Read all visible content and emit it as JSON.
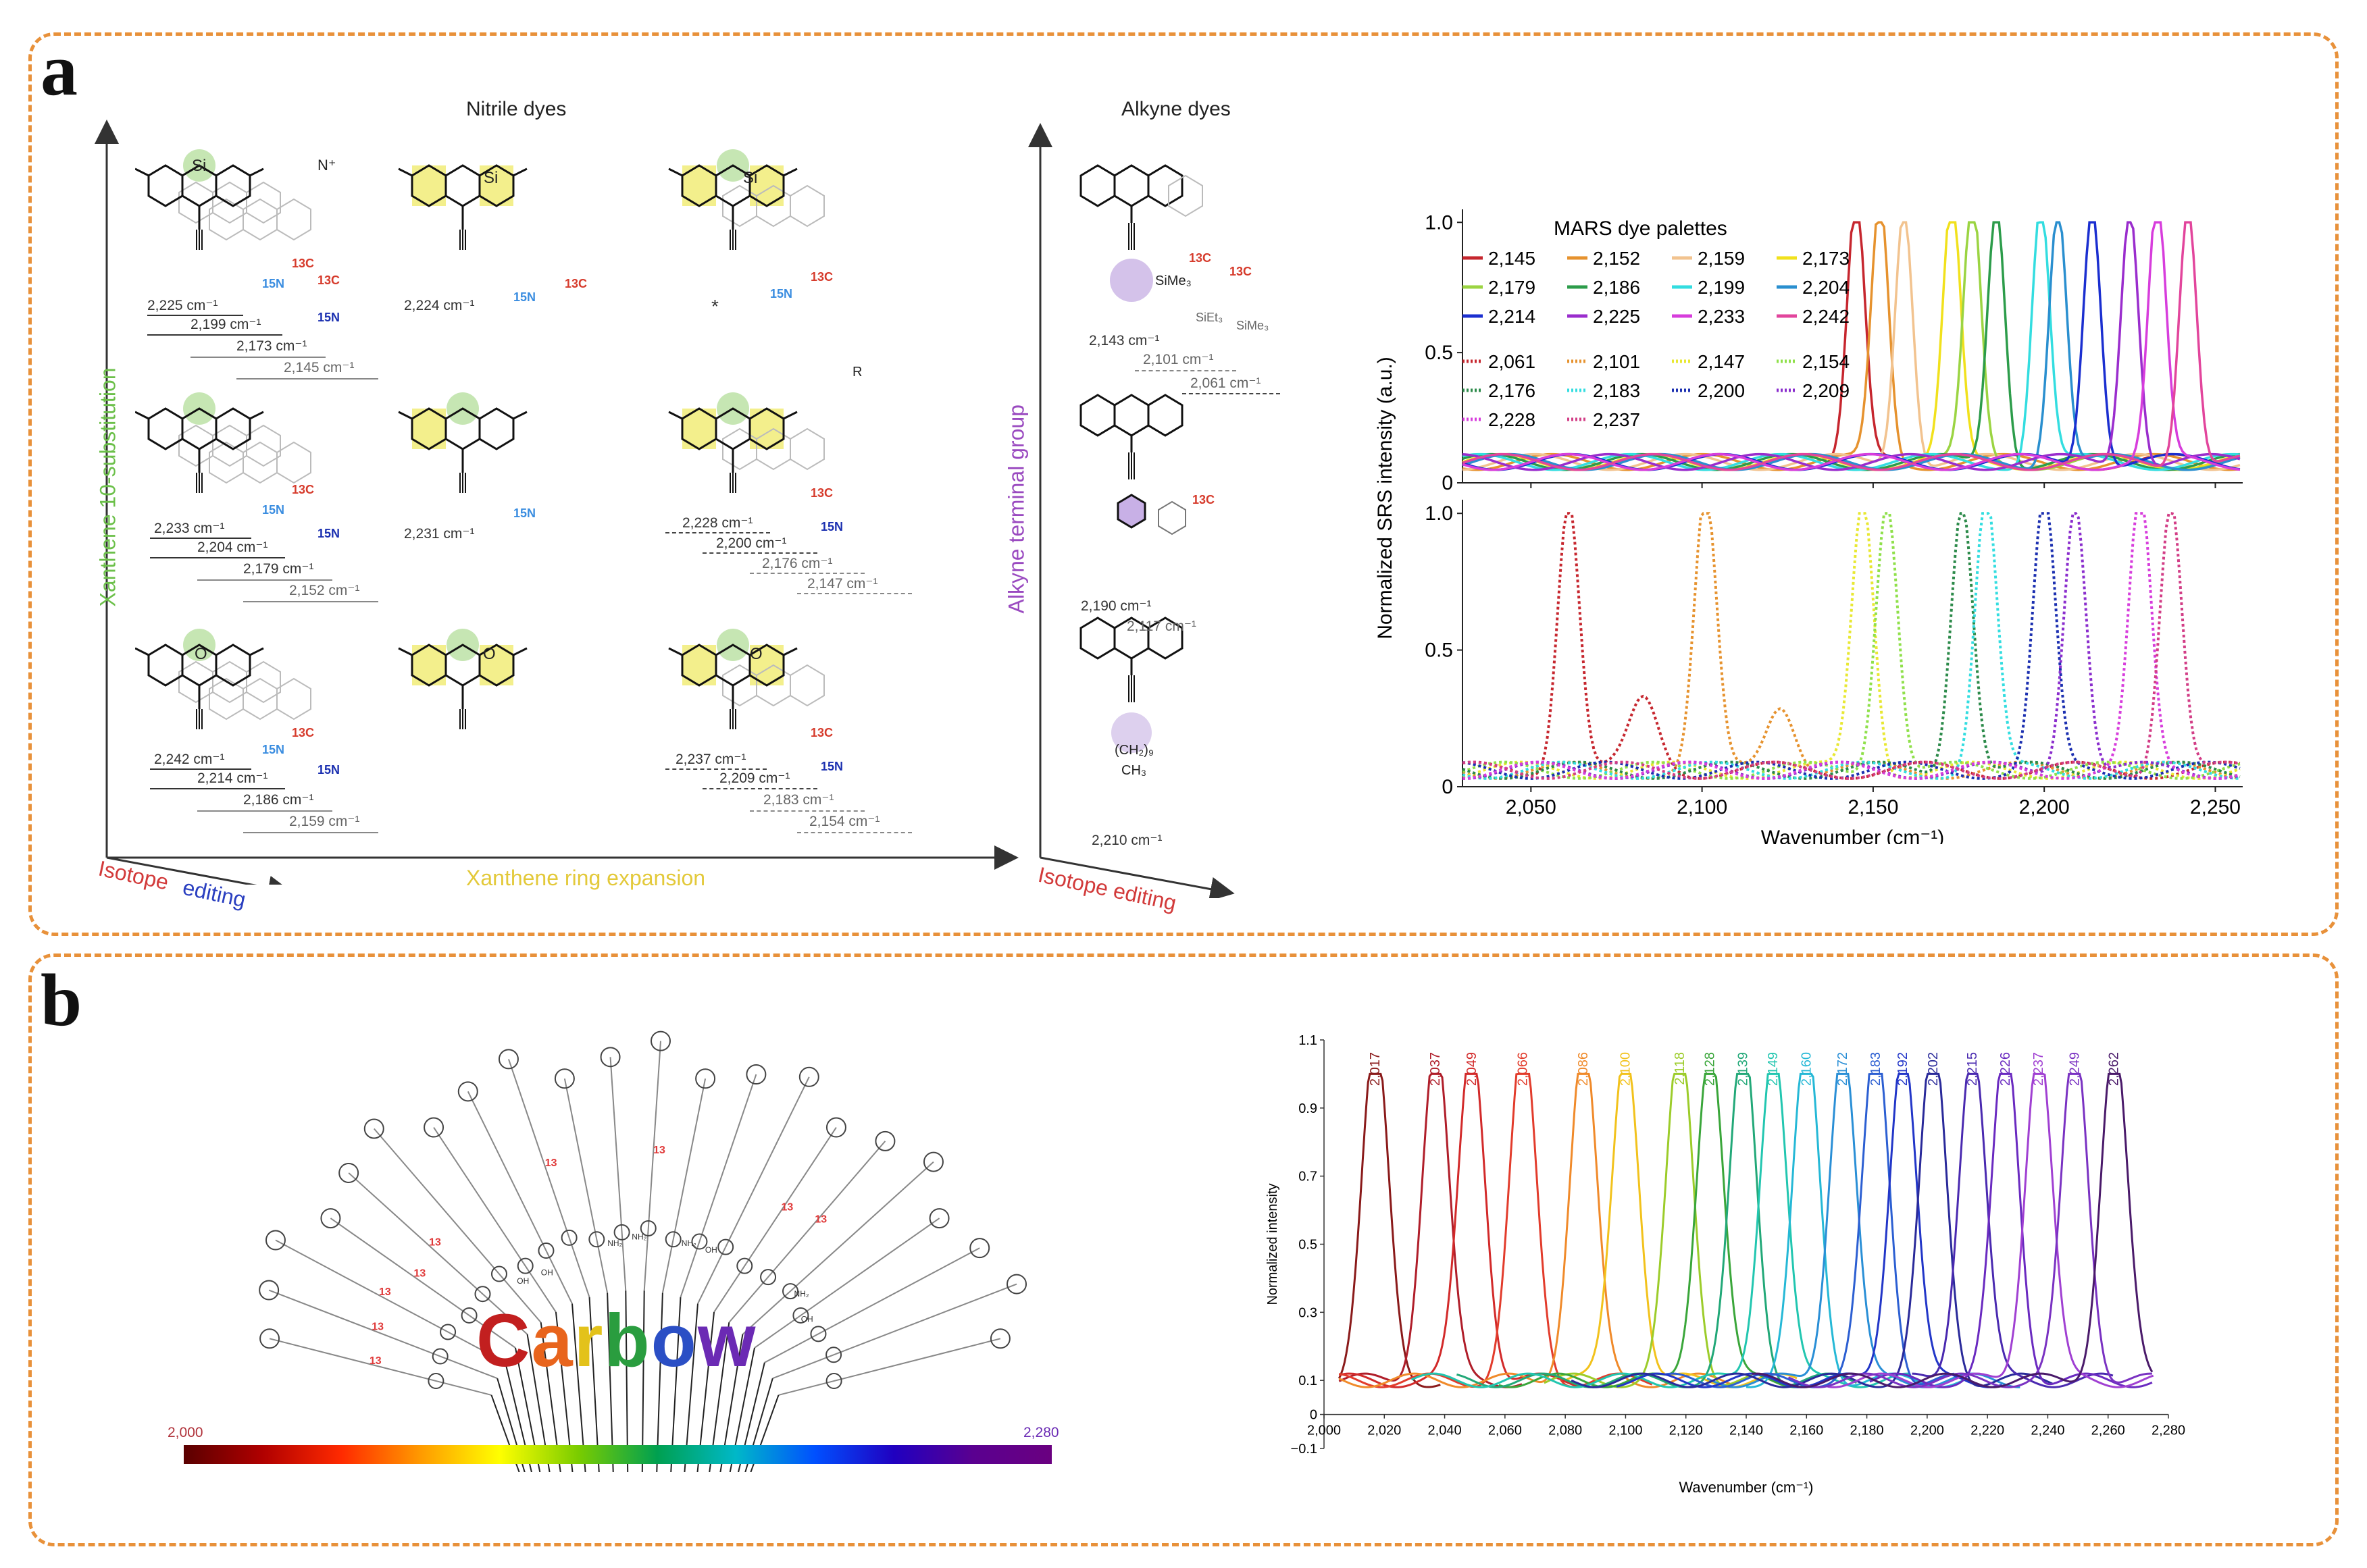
{
  "panel_a": {
    "label": "a",
    "nitrile_title": "Nitrile dyes",
    "alkyne_title": "Alkyne dyes",
    "axis_y_nitrile": "Xanthene 10-substitution",
    "axis_x_nitrile": "Xanthene ring expansion",
    "axis_iso_nitrile_1": "Isotope",
    "axis_iso_nitrile_2": "editing",
    "axis_y_alkyne": "Alkyne terminal group",
    "axis_iso_alkyne": "Isotope editing",
    "asterisk": "*",
    "nitrile_rows": [
      {
        "col1": [
          "2,225 cm⁻¹",
          "2,199 cm⁻¹",
          "2,173 cm⁻¹",
          "2,145 cm⁻¹"
        ],
        "col2": "2,224 cm⁻¹",
        "col3": []
      },
      {
        "col1": [
          "2,233 cm⁻¹",
          "2,204 cm⁻¹",
          "2,179 cm⁻¹",
          "2,152 cm⁻¹"
        ],
        "col2": "2,231 cm⁻¹",
        "col3": [
          "2,228 cm⁻¹",
          "2,200 cm⁻¹",
          "2,176 cm⁻¹",
          "2,147 cm⁻¹"
        ]
      },
      {
        "col1": [
          "2,242 cm⁻¹",
          "2,214 cm⁻¹",
          "2,186 cm⁻¹",
          "2,159 cm⁻¹"
        ],
        "col2": "",
        "col3": [
          "2,237 cm⁻¹",
          "2,209 cm⁻¹",
          "2,183 cm⁻¹",
          "2,154 cm⁻¹"
        ]
      }
    ],
    "alkyne_rows": [
      {
        "main": "2,143 cm⁻¹",
        "iso": [
          "2,101 cm⁻¹",
          "2,061 cm⁻¹"
        ],
        "group": "SiMe₃",
        "ghost1": "SiEt₃",
        "ghost2": "SiMe₃"
      },
      {
        "main": "2,190 cm⁻¹",
        "iso": [
          "2,117 cm⁻¹"
        ]
      },
      {
        "main": "2,210 cm⁻¹",
        "iso": [],
        "group1": "(CH₂)₉",
        "group2": "CH₃"
      }
    ],
    "atoms": {
      "si": "Si",
      "n": "N",
      "o": "O",
      "c13": "13C",
      "n15": "15N",
      "nplus": "N⁺",
      "r": "R"
    }
  },
  "mars_chart_data": {
    "type": "line",
    "title": "MARS dye palettes",
    "ylabel": "Normalized SRS intensity (a.u.)",
    "xlabel": "Wavenumber (cm⁻¹)",
    "xlim": [
      2030,
      2258
    ],
    "ylim": [
      0,
      1.05
    ],
    "xticks": [
      "2,050",
      "2,100",
      "2,150",
      "2,200",
      "2,250"
    ],
    "xtick_vals": [
      2050,
      2100,
      2150,
      2200,
      2250
    ],
    "yticks": [
      "0",
      "0.5",
      "1.0"
    ],
    "ytick_vals": [
      0,
      0.5,
      1.0
    ],
    "top_series": [
      {
        "name": "2,145",
        "color": "#c6262e"
      },
      {
        "name": "2,152",
        "color": "#e6922e"
      },
      {
        "name": "2,159",
        "color": "#f2c38f"
      },
      {
        "name": "2,173",
        "color": "#f1e11c"
      },
      {
        "name": "2,179",
        "color": "#9bd442"
      },
      {
        "name": "2,186",
        "color": "#2c9c4a"
      },
      {
        "name": "2,199",
        "color": "#33dde0"
      },
      {
        "name": "2,204",
        "color": "#2a8fcf"
      },
      {
        "name": "2,214",
        "color": "#1b2fd0"
      },
      {
        "name": "2,225",
        "color": "#9a2dcd"
      },
      {
        "name": "2,233",
        "color": "#d73ddc"
      },
      {
        "name": "2,242",
        "color": "#e2459c"
      }
    ],
    "bottom_series": [
      {
        "name": "2,061",
        "color": "#c6262e"
      },
      {
        "name": "2,101",
        "color": "#e6922e"
      },
      {
        "name": "2,147",
        "color": "#e8e832"
      },
      {
        "name": "2,154",
        "color": "#8fe04a"
      },
      {
        "name": "2,176",
        "color": "#2c8a4a"
      },
      {
        "name": "2,183",
        "color": "#33dde0"
      },
      {
        "name": "2,200",
        "color": "#1b2fb0"
      },
      {
        "name": "2,209",
        "color": "#8a2dcd"
      },
      {
        "name": "2,228",
        "color": "#d73ddc"
      },
      {
        "name": "2,237",
        "color": "#d23d86"
      }
    ]
  },
  "panel_b": {
    "label": "b",
    "carbow_letters": [
      "C",
      "a",
      "r",
      "b",
      "o",
      "w"
    ],
    "carbow_colors": [
      "#c21f1f",
      "#e8641c",
      "#e3c21a",
      "#2a9d3f",
      "#2b4fc5",
      "#6b2ab4"
    ],
    "bar_min": "2,000",
    "bar_max": "2,280",
    "iso13": "13",
    "nh2": "NH₂",
    "oh": "OH"
  },
  "carbow_chart_data": {
    "type": "line",
    "ylabel": "Normalized intensity",
    "xlabel": "Wavenumber (cm⁻¹)",
    "xlim": [
      2000,
      2280
    ],
    "ylim": [
      -0.1,
      1.1
    ],
    "xticks": [
      "2,000",
      "2,020",
      "2,040",
      "2,060",
      "2,080",
      "2,100",
      "2,120",
      "2,140",
      "2,160",
      "2,180",
      "2,200",
      "2,220",
      "2,240",
      "2,260",
      "2,280"
    ],
    "xtick_vals": [
      2000,
      2020,
      2040,
      2060,
      2080,
      2100,
      2120,
      2140,
      2160,
      2180,
      2200,
      2220,
      2240,
      2260,
      2280
    ],
    "yticks": [
      "−0.1",
      "0",
      "0.1",
      "0.3",
      "0.5",
      "0.7",
      "0.9",
      "1.1"
    ],
    "ytick_vals": [
      -0.1,
      0,
      0.1,
      0.3,
      0.5,
      0.7,
      0.9,
      1.1
    ],
    "peaks": [
      {
        "label": "2,017",
        "x": 2017,
        "color": "#8a1a1a"
      },
      {
        "label": "2,037",
        "x": 2037,
        "color": "#b01e2a"
      },
      {
        "label": "2,049",
        "x": 2049,
        "color": "#d22a2a"
      },
      {
        "label": "2,066",
        "x": 2066,
        "color": "#e23c2c"
      },
      {
        "label": "2,086",
        "x": 2086,
        "color": "#f08a2a"
      },
      {
        "label": "2,100",
        "x": 2100,
        "color": "#f2c21c"
      },
      {
        "label": "2,118",
        "x": 2118,
        "color": "#9ccc2a"
      },
      {
        "label": "2,128",
        "x": 2128,
        "color": "#3aa63a"
      },
      {
        "label": "2,139",
        "x": 2139,
        "color": "#22a878"
      },
      {
        "label": "2,149",
        "x": 2149,
        "color": "#22c6b0"
      },
      {
        "label": "2,160",
        "x": 2160,
        "color": "#25b8d6"
      },
      {
        "label": "2,172",
        "x": 2172,
        "color": "#2a8fd6"
      },
      {
        "label": "2,183",
        "x": 2183,
        "color": "#2c5fd2"
      },
      {
        "label": "2,192",
        "x": 2192,
        "color": "#2236c8"
      },
      {
        "label": "2,202",
        "x": 2202,
        "color": "#2a2a9a"
      },
      {
        "label": "2,215",
        "x": 2215,
        "color": "#4a2ab0"
      },
      {
        "label": "2,226",
        "x": 2226,
        "color": "#6a2ac0"
      },
      {
        "label": "2,237",
        "x": 2237,
        "color": "#a040d2"
      },
      {
        "label": "2,249",
        "x": 2249,
        "color": "#7a32c2"
      },
      {
        "label": "2,262",
        "x": 2262,
        "color": "#4a1a6a"
      }
    ]
  }
}
